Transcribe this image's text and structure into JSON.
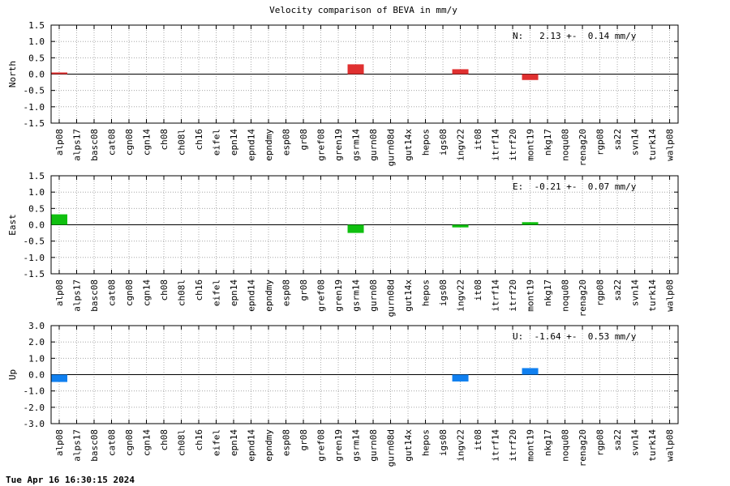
{
  "title": "Velocity comparison of BEVA in mm/y",
  "footer": "Tue Apr 16 16:30:15 2024",
  "chart_data": [
    {
      "type": "bar",
      "ylabel": "North",
      "annotation": "N:   2.13 +-  0.14 mm/y",
      "color": "#e03030",
      "ylim": [
        -1.5,
        1.5
      ],
      "yticks": [
        1.5,
        1.0,
        0.5,
        0.0,
        -0.5,
        -1.0,
        -1.5
      ],
      "ytick_labels": [
        "1.5",
        "1.0",
        "0.5",
        "0.0",
        "-0.5",
        "-1.0",
        "-1.5"
      ],
      "grid": true,
      "categories": [
        "alp08",
        "alps17",
        "basc08",
        "cat08",
        "cgn08",
        "cgn14",
        "ch08",
        "ch08l",
        "ch16",
        "eifel",
        "epn14",
        "epnd14",
        "epndmy",
        "esp08",
        "gr08",
        "gref08",
        "gren19",
        "gsrm14",
        "gurn08",
        "gurn08d",
        "gut14x",
        "hepos",
        "igs08",
        "ingv22",
        "it08",
        "itrf14",
        "itrf20",
        "mont19",
        "nkg17",
        "noqu08",
        "renag20",
        "rgp08",
        "sa22",
        "svn14",
        "turk14",
        "walp08"
      ],
      "values": [
        0.05,
        null,
        null,
        null,
        null,
        null,
        null,
        null,
        null,
        null,
        null,
        null,
        null,
        null,
        null,
        null,
        null,
        0.3,
        null,
        null,
        null,
        null,
        null,
        0.15,
        null,
        null,
        null,
        -0.18,
        null,
        null,
        null,
        null,
        null,
        null,
        null,
        null
      ]
    },
    {
      "type": "bar",
      "ylabel": "East",
      "annotation": "E:  -0.21 +-  0.07 mm/y",
      "color": "#10c010",
      "ylim": [
        -1.5,
        1.5
      ],
      "yticks": [
        1.5,
        1.0,
        0.5,
        0.0,
        -0.5,
        -1.0,
        -1.5
      ],
      "ytick_labels": [
        "1.5",
        "1.0",
        "0.5",
        "0.0",
        "-0.5",
        "-1.0",
        "-1.5"
      ],
      "grid": true,
      "categories": [
        "alp08",
        "alps17",
        "basc08",
        "cat08",
        "cgn08",
        "cgn14",
        "ch08",
        "ch08l",
        "ch16",
        "eifel",
        "epn14",
        "epnd14",
        "epndmy",
        "esp08",
        "gr08",
        "gref08",
        "gren19",
        "gsrm14",
        "gurn08",
        "gurn08d",
        "gut14x",
        "hepos",
        "igs08",
        "ingv22",
        "it08",
        "itrf14",
        "itrf20",
        "mont19",
        "nkg17",
        "noqu08",
        "renag20",
        "rgp08",
        "sa22",
        "svn14",
        "turk14",
        "walp08"
      ],
      "values": [
        0.32,
        null,
        null,
        null,
        null,
        null,
        null,
        null,
        null,
        null,
        null,
        null,
        null,
        null,
        null,
        null,
        null,
        -0.25,
        null,
        null,
        null,
        null,
        null,
        -0.08,
        null,
        null,
        null,
        0.08,
        null,
        null,
        null,
        null,
        null,
        null,
        null,
        null
      ]
    },
    {
      "type": "bar",
      "ylabel": "Up",
      "annotation": "U:  -1.64 +-  0.53 mm/y",
      "color": "#1080f0",
      "ylim": [
        -3.0,
        3.0
      ],
      "yticks": [
        3.0,
        2.0,
        1.0,
        0.0,
        -1.0,
        -2.0,
        -3.0
      ],
      "ytick_labels": [
        "3.0",
        "2.0",
        "1.0",
        "0.0",
        "-1.0",
        "-2.0",
        "-3.0"
      ],
      "grid": true,
      "categories": [
        "alp08",
        "alps17",
        "basc08",
        "cat08",
        "cgn08",
        "cgn14",
        "ch08",
        "ch08l",
        "ch16",
        "eifel",
        "epn14",
        "epnd14",
        "epndmy",
        "esp08",
        "gr08",
        "gref08",
        "gren19",
        "gsrm14",
        "gurn08",
        "gurn08d",
        "gut14x",
        "hepos",
        "igs08",
        "ingv22",
        "it08",
        "itrf14",
        "itrf20",
        "mont19",
        "nkg17",
        "noqu08",
        "renag20",
        "rgp08",
        "sa22",
        "svn14",
        "turk14",
        "walp08"
      ],
      "values": [
        -0.45,
        null,
        null,
        null,
        null,
        null,
        null,
        null,
        null,
        null,
        null,
        null,
        null,
        null,
        null,
        null,
        null,
        null,
        null,
        null,
        null,
        null,
        null,
        -0.42,
        null,
        null,
        null,
        0.4,
        null,
        null,
        null,
        null,
        null,
        null,
        null,
        null
      ]
    }
  ]
}
